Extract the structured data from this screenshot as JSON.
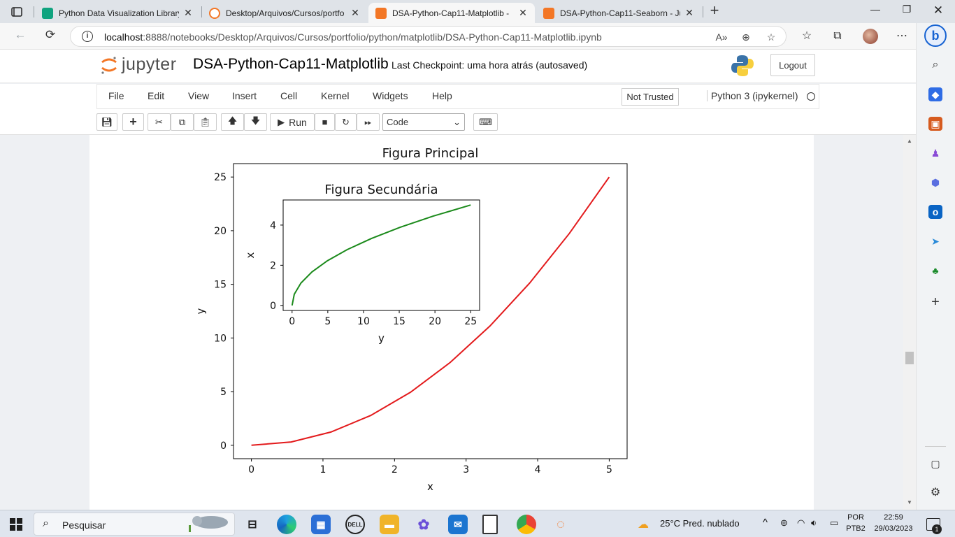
{
  "browser": {
    "tabs": [
      {
        "title": "Python Data Visualization Library"
      },
      {
        "title": "Desktop/Arquivos/Cursos/portfo"
      },
      {
        "title": "DSA-Python-Cap11-Matplotlib -"
      },
      {
        "title": "DSA-Python-Cap11-Seaborn - Ju"
      }
    ],
    "close_glyph": "✕",
    "address": {
      "host": "localhost",
      "path": ":8888/notebooks/Desktop/Arquivos/Cursos/portfolio/python/matplotlib/DSA-Python-Cap11-Matplotlib.ipynb"
    }
  },
  "jupyter": {
    "logo_text": "jupyter",
    "notebook_title": "DSA-Python-Cap11-Matplotlib",
    "checkpoint": "Last Checkpoint: uma hora atrás  (autosaved)",
    "logout_label": "Logout",
    "menu": [
      "File",
      "Edit",
      "View",
      "Insert",
      "Cell",
      "Kernel",
      "Widgets",
      "Help"
    ],
    "trusted_label": "Not Trusted",
    "kernel_label": "Python 3 (ipykernel)",
    "toolbar": {
      "run_label": "Run",
      "cell_type": "Code"
    }
  },
  "chart_data": [
    {
      "type": "line",
      "title": "Figura Principal",
      "xlabel": "x",
      "ylabel": "y",
      "xlim": [
        -0.25,
        5.25
      ],
      "ylim": [
        -1.25,
        26.25
      ],
      "xticks": [
        0,
        1,
        2,
        3,
        4,
        5
      ],
      "yticks": [
        0,
        5,
        10,
        15,
        20,
        25
      ],
      "series": [
        {
          "color": "#e31a1c",
          "x": [
            0,
            0.5556,
            1.1111,
            1.6667,
            2.2222,
            2.7778,
            3.3333,
            3.8889,
            4.4444,
            5
          ],
          "y": [
            0,
            0.309,
            1.235,
            2.778,
            4.938,
            7.716,
            11.111,
            15.123,
            19.753,
            25
          ]
        }
      ]
    },
    {
      "type": "line",
      "title": "Figura Secundária",
      "xlabel": "y",
      "ylabel": "x",
      "xlim": [
        -1.25,
        26.25
      ],
      "ylim": [
        -0.25,
        5.25
      ],
      "xticks": [
        0,
        5,
        10,
        15,
        20,
        25
      ],
      "yticks": [
        0,
        2,
        4
      ],
      "series": [
        {
          "color": "#1b8a1b",
          "x": [
            0,
            0.309,
            1.235,
            2.778,
            4.938,
            7.716,
            11.111,
            15.123,
            19.753,
            25
          ],
          "y": [
            0,
            0.5556,
            1.1111,
            1.6667,
            2.2222,
            2.7778,
            3.3333,
            3.8889,
            4.4444,
            5
          ]
        }
      ]
    }
  ],
  "taskbar": {
    "search_label": "Pesquisar",
    "weather": "25°C  Pred. nublado",
    "lang_top": "POR",
    "lang_bottom": "PTB2",
    "time": "22:59",
    "date": "29/03/2023",
    "notif_count": "1",
    "dell_label": "DELL"
  }
}
